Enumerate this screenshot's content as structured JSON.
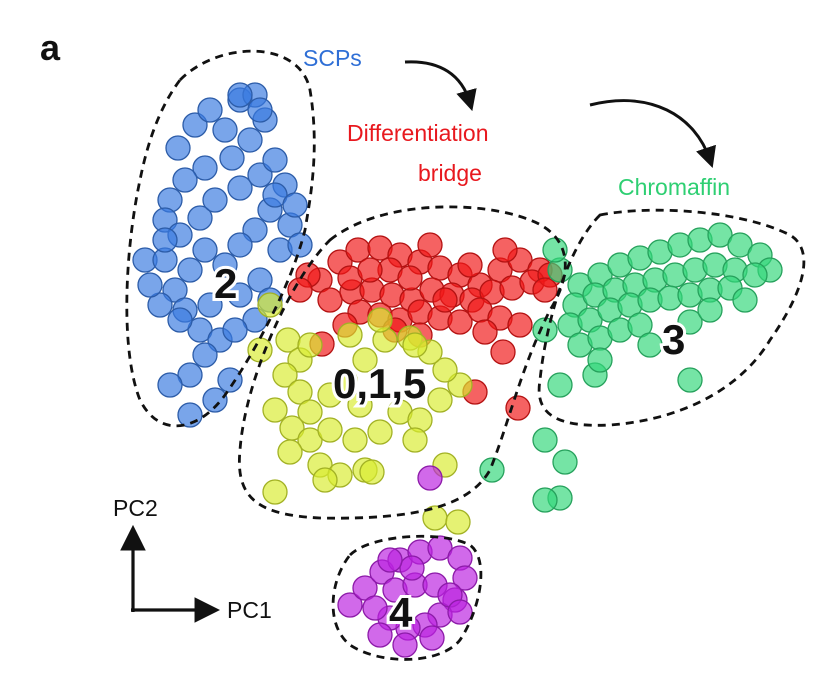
{
  "panel_letter": "a",
  "axes": {
    "x_label": "PC1",
    "y_label": "PC2"
  },
  "labels": {
    "scps": "SCPs",
    "diff_line1": "Differentiation",
    "diff_line2": "bridge",
    "chromaffin": "Chromaffin"
  },
  "clusters": {
    "c2": "2",
    "c015": "0,1,5",
    "c3": "3",
    "c4": "4"
  },
  "colors": {
    "blue": "#3a7ae0",
    "red": "#f01818",
    "yellow": "#d8ec30",
    "green": "#33d77a",
    "purple": "#bb22e0",
    "scps_text": "#2f6fd6",
    "diff_text": "#e8181e",
    "chromaffin_text": "#2ecf72"
  },
  "chart_data": {
    "type": "scatter",
    "xlabel": "PC1",
    "ylabel": "PC2",
    "title": "",
    "series": [
      {
        "name": "SCPs",
        "cluster": "2",
        "color": "#3a7ae0",
        "points": [
          [
            178,
            148
          ],
          [
            195,
            125
          ],
          [
            210,
            110
          ],
          [
            240,
            100
          ],
          [
            255,
            95
          ],
          [
            265,
            120
          ],
          [
            250,
            140
          ],
          [
            232,
            158
          ],
          [
            205,
            168
          ],
          [
            185,
            180
          ],
          [
            170,
            200
          ],
          [
            165,
            220
          ],
          [
            180,
            235
          ],
          [
            200,
            218
          ],
          [
            215,
            200
          ],
          [
            240,
            188
          ],
          [
            260,
            175
          ],
          [
            275,
            160
          ],
          [
            285,
            185
          ],
          [
            270,
            210
          ],
          [
            255,
            230
          ],
          [
            240,
            245
          ],
          [
            225,
            265
          ],
          [
            205,
            250
          ],
          [
            190,
            270
          ],
          [
            175,
            290
          ],
          [
            160,
            305
          ],
          [
            150,
            285
          ],
          [
            145,
            260
          ],
          [
            165,
            260
          ],
          [
            185,
            310
          ],
          [
            200,
            330
          ],
          [
            220,
            340
          ],
          [
            210,
            305
          ],
          [
            240,
            295
          ],
          [
            260,
            280
          ],
          [
            280,
            250
          ],
          [
            290,
            225
          ],
          [
            300,
            245
          ],
          [
            270,
            300
          ],
          [
            255,
            320
          ],
          [
            235,
            330
          ],
          [
            205,
            355
          ],
          [
            190,
            375
          ],
          [
            230,
            380
          ],
          [
            215,
            400
          ],
          [
            190,
            415
          ],
          [
            170,
            385
          ],
          [
            240,
            95
          ],
          [
            225,
            130
          ],
          [
            260,
            110
          ],
          [
            275,
            195
          ],
          [
            295,
            205
          ],
          [
            165,
            240
          ],
          [
            180,
            320
          ]
        ]
      },
      {
        "name": "Differentiation bridge",
        "cluster": "0,1,5",
        "color": "#f01818",
        "points": [
          [
            320,
            280
          ],
          [
            340,
            262
          ],
          [
            358,
            250
          ],
          [
            380,
            248
          ],
          [
            400,
            255
          ],
          [
            420,
            262
          ],
          [
            440,
            268
          ],
          [
            460,
            275
          ],
          [
            480,
            285
          ],
          [
            500,
            270
          ],
          [
            520,
            260
          ],
          [
            540,
            270
          ],
          [
            330,
            300
          ],
          [
            352,
            292
          ],
          [
            372,
            290
          ],
          [
            392,
            295
          ],
          [
            412,
            300
          ],
          [
            432,
            290
          ],
          [
            452,
            295
          ],
          [
            472,
            300
          ],
          [
            492,
            292
          ],
          [
            512,
            288
          ],
          [
            532,
            282
          ],
          [
            550,
            275
          ],
          [
            360,
            312
          ],
          [
            380,
            315
          ],
          [
            400,
            320
          ],
          [
            420,
            312
          ],
          [
            440,
            318
          ],
          [
            460,
            322
          ],
          [
            480,
            310
          ],
          [
            500,
            318
          ],
          [
            520,
            325
          ],
          [
            345,
            325
          ],
          [
            395,
            330
          ],
          [
            420,
            335
          ],
          [
            308,
            275
          ],
          [
            322,
            344
          ],
          [
            390,
            270
          ],
          [
            410,
            278
          ],
          [
            430,
            245
          ],
          [
            350,
            278
          ],
          [
            370,
            270
          ],
          [
            445,
            300
          ],
          [
            470,
            265
          ],
          [
            505,
            250
          ],
          [
            475,
            392
          ],
          [
            518,
            408
          ],
          [
            503,
            352
          ],
          [
            485,
            332
          ],
          [
            545,
            290
          ],
          [
            300,
            290
          ]
        ]
      },
      {
        "name": "Yellow-green",
        "cluster": "0,1,5",
        "color": "#d8ec30",
        "points": [
          [
            270,
            305
          ],
          [
            260,
            350
          ],
          [
            288,
            340
          ],
          [
            300,
            360
          ],
          [
            285,
            375
          ],
          [
            300,
            392
          ],
          [
            275,
            410
          ],
          [
            292,
            428
          ],
          [
            310,
            440
          ],
          [
            330,
            430
          ],
          [
            355,
            440
          ],
          [
            380,
            432
          ],
          [
            400,
            412
          ],
          [
            420,
            420
          ],
          [
            440,
            400
          ],
          [
            460,
            385
          ],
          [
            445,
            370
          ],
          [
            430,
            352
          ],
          [
            410,
            338
          ],
          [
            385,
            340
          ],
          [
            365,
            360
          ],
          [
            345,
            380
          ],
          [
            330,
            395
          ],
          [
            310,
            412
          ],
          [
            290,
            452
          ],
          [
            320,
            465
          ],
          [
            340,
            475
          ],
          [
            365,
            470
          ],
          [
            372,
            472
          ],
          [
            350,
            335
          ],
          [
            380,
            320
          ],
          [
            415,
            345
          ],
          [
            275,
            492
          ],
          [
            435,
            518
          ],
          [
            458,
            522
          ],
          [
            415,
            440
          ],
          [
            445,
            465
          ],
          [
            310,
            345
          ],
          [
            325,
            480
          ],
          [
            360,
            405
          ]
        ]
      },
      {
        "name": "Chromaffin",
        "cluster": "3",
        "color": "#33d77a",
        "points": [
          [
            560,
            270
          ],
          [
            580,
            285
          ],
          [
            600,
            275
          ],
          [
            620,
            265
          ],
          [
            640,
            258
          ],
          [
            660,
            252
          ],
          [
            680,
            245
          ],
          [
            700,
            240
          ],
          [
            720,
            235
          ],
          [
            740,
            245
          ],
          [
            760,
            255
          ],
          [
            770,
            270
          ],
          [
            575,
            305
          ],
          [
            595,
            295
          ],
          [
            615,
            290
          ],
          [
            635,
            285
          ],
          [
            655,
            280
          ],
          [
            675,
            275
          ],
          [
            695,
            270
          ],
          [
            715,
            265
          ],
          [
            735,
            270
          ],
          [
            755,
            275
          ],
          [
            570,
            325
          ],
          [
            590,
            320
          ],
          [
            610,
            310
          ],
          [
            630,
            305
          ],
          [
            650,
            300
          ],
          [
            670,
            298
          ],
          [
            690,
            295
          ],
          [
            710,
            290
          ],
          [
            730,
            288
          ],
          [
            580,
            345
          ],
          [
            600,
            338
          ],
          [
            620,
            330
          ],
          [
            640,
            325
          ],
          [
            690,
            322
          ],
          [
            650,
            345
          ],
          [
            710,
            310
          ],
          [
            745,
            300
          ],
          [
            560,
            385
          ],
          [
            595,
            375
          ],
          [
            690,
            380
          ],
          [
            545,
            440
          ],
          [
            565,
            462
          ],
          [
            560,
            498
          ],
          [
            545,
            500
          ],
          [
            492,
            470
          ],
          [
            555,
            250
          ],
          [
            545,
            330
          ],
          [
            600,
            360
          ]
        ]
      },
      {
        "name": "Purple",
        "cluster": "4",
        "color": "#bb22e0",
        "points": [
          [
            430,
            478
          ],
          [
            350,
            605
          ],
          [
            365,
            588
          ],
          [
            382,
            572
          ],
          [
            400,
            560
          ],
          [
            420,
            552
          ],
          [
            440,
            548
          ],
          [
            460,
            558
          ],
          [
            465,
            578
          ],
          [
            455,
            600
          ],
          [
            440,
            615
          ],
          [
            425,
            625
          ],
          [
            408,
            628
          ],
          [
            390,
            618
          ],
          [
            375,
            608
          ],
          [
            395,
            590
          ],
          [
            415,
            585
          ],
          [
            435,
            585
          ],
          [
            450,
            595
          ],
          [
            380,
            635
          ],
          [
            405,
            645
          ],
          [
            432,
            638
          ],
          [
            412,
            568
          ],
          [
            390,
            560
          ],
          [
            460,
            612
          ]
        ]
      }
    ]
  }
}
